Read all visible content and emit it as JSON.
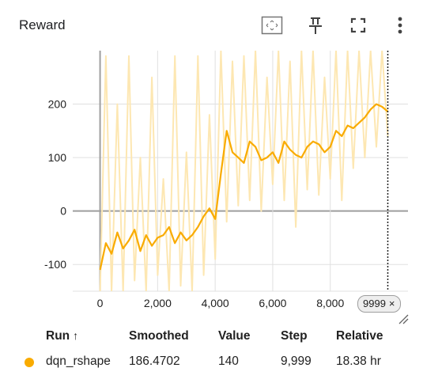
{
  "card": {
    "title": "Reward"
  },
  "header_icons": [
    "fit-domain-icon",
    "pin-icon",
    "fullscreen-icon",
    "more-vert-icon"
  ],
  "step_chip": {
    "label": "9999",
    "close": "×"
  },
  "table": {
    "headers": {
      "run": "Run",
      "sort_indicator": "↑",
      "smoothed": "Smoothed",
      "value": "Value",
      "step": "Step",
      "relative": "Relative"
    },
    "rows": [
      {
        "run": "dqn_rshape",
        "color": "#f9ab00",
        "smoothed": "186.4702",
        "value": "140",
        "step": "9,999",
        "relative": "18.38 hr"
      }
    ]
  },
  "colors": {
    "series_smoothed": "#f9ab00",
    "series_raw": "#fde7b2",
    "axis": "#9e9e9e",
    "grid": "#e0e0e0"
  },
  "chart_data": {
    "type": "line",
    "title": "Reward",
    "xlabel": "",
    "ylabel": "",
    "x_ticks": [
      "0",
      "2,000",
      "4,000",
      "6,000",
      "8,000"
    ],
    "y_ticks": [
      "-100",
      "0",
      "100",
      "200"
    ],
    "xlim": [
      -950,
      10700
    ],
    "ylim": [
      -150,
      300
    ],
    "cursor_step": 9999,
    "series": [
      {
        "name": "dqn_rshape",
        "kind": "smoothed",
        "x": [
          0,
          200,
          400,
          600,
          800,
          1000,
          1200,
          1400,
          1600,
          1800,
          2000,
          2200,
          2400,
          2600,
          2800,
          3000,
          3200,
          3400,
          3600,
          3800,
          4000,
          4200,
          4400,
          4600,
          4800,
          5000,
          5200,
          5400,
          5600,
          5800,
          6000,
          6200,
          6400,
          6600,
          6800,
          7000,
          7200,
          7400,
          7600,
          7800,
          8000,
          8200,
          8400,
          8600,
          8800,
          9000,
          9200,
          9400,
          9600,
          9800,
          9999
        ],
        "y": [
          -110,
          -60,
          -80,
          -40,
          -70,
          -55,
          -35,
          -75,
          -45,
          -65,
          -50,
          -45,
          -30,
          -60,
          -40,
          -55,
          -45,
          -30,
          -10,
          5,
          -15,
          70,
          150,
          110,
          100,
          90,
          130,
          120,
          95,
          100,
          110,
          90,
          130,
          115,
          105,
          100,
          120,
          130,
          125,
          110,
          120,
          150,
          140,
          160,
          155,
          165,
          175,
          190,
          200,
          195,
          186
        ]
      },
      {
        "name": "dqn_rshape",
        "kind": "raw",
        "x": [
          0,
          200,
          400,
          600,
          800,
          1000,
          1200,
          1400,
          1600,
          1800,
          2000,
          2200,
          2400,
          2600,
          2800,
          3000,
          3200,
          3400,
          3600,
          3800,
          4000,
          4200,
          4400,
          4600,
          4800,
          5000,
          5200,
          5400,
          5600,
          5800,
          6000,
          6200,
          6400,
          6600,
          6800,
          7000,
          7200,
          7400,
          7600,
          7800,
          8000,
          8200,
          8400,
          8600,
          8800,
          9000,
          9200,
          9400,
          9600,
          9800,
          9999
        ],
        "y": [
          -150,
          290,
          -150,
          200,
          -150,
          290,
          -130,
          100,
          -150,
          250,
          -120,
          60,
          -150,
          290,
          -140,
          110,
          -150,
          290,
          -120,
          180,
          -90,
          300,
          -20,
          280,
          10,
          290,
          20,
          300,
          0,
          250,
          50,
          300,
          20,
          280,
          -30,
          300,
          40,
          300,
          30,
          250,
          60,
          300,
          20,
          300,
          80,
          300,
          100,
          300,
          120,
          300,
          140
        ]
      }
    ]
  }
}
